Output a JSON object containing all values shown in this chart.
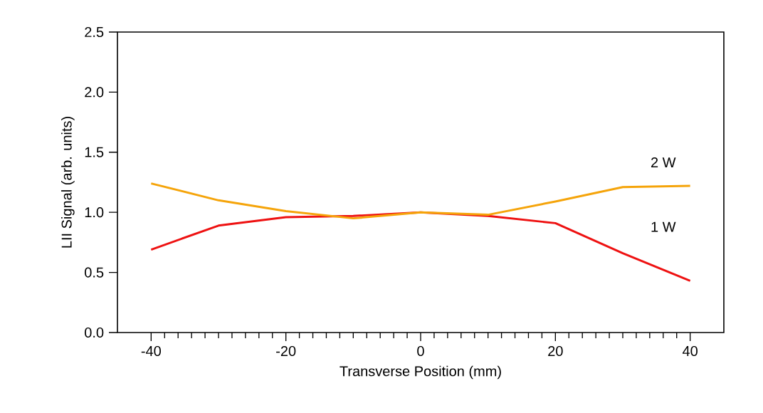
{
  "chart_data": {
    "type": "line",
    "xlabel": "Transverse Position (mm)",
    "ylabel": "LII Signal (arb. units)",
    "x": [
      -40,
      -30,
      -20,
      -10,
      0,
      10,
      20,
      30,
      40
    ],
    "series": [
      {
        "name": "2 W",
        "color": "#f5a40a",
        "values": [
          1.24,
          1.1,
          1.01,
          0.95,
          1.0,
          0.98,
          1.09,
          1.21,
          1.22
        ]
      },
      {
        "name": "1 W",
        "color": "#ee1111",
        "values": [
          0.69,
          0.89,
          0.96,
          0.97,
          1.0,
          0.97,
          0.91,
          0.66,
          0.43
        ]
      }
    ],
    "xlim": [
      -45,
      45
    ],
    "ylim": [
      0,
      2.5
    ],
    "xticks": [
      -40,
      -20,
      0,
      20,
      40
    ],
    "yticks": [
      {
        "value": 0,
        "label": "0.0"
      },
      {
        "value": 0.5,
        "label": "0.5"
      },
      {
        "value": 1,
        "label": "1.0"
      },
      {
        "value": 1.5,
        "label": "1.5"
      },
      {
        "value": 2,
        "label": "2.0"
      },
      {
        "value": 2.5,
        "label": "2.5"
      }
    ],
    "grid": false,
    "legend": false,
    "marker": "none",
    "line_style": "solid"
  }
}
